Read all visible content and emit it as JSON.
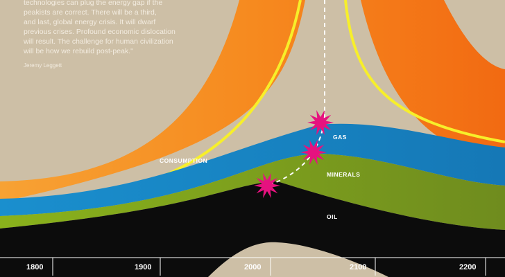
{
  "quote": {
    "lines": [
      "technologies can plug the energy gap if the",
      "peakists are correct. There will be a third,",
      "and last, global energy crisis. It will dwarf",
      "previous crises. Profound economic dislocation",
      "will result. The challenge for human civilization",
      "will be how we rebuild post-peak.\""
    ],
    "author": "Jeremy Leggett"
  },
  "bands": [
    "CONSUMPTION",
    "GAS",
    "MINERALS",
    "OIL"
  ],
  "years": [
    "1800",
    "1900",
    "2000",
    "2100",
    "2200"
  ]
}
